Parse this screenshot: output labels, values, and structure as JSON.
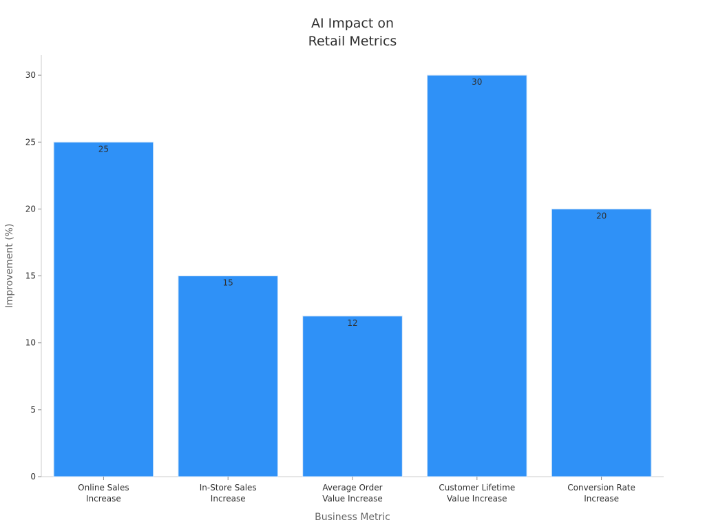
{
  "chart_data": {
    "type": "bar",
    "title": [
      "AI Impact on",
      "Retail Metrics"
    ],
    "xlabel": "Business Metric",
    "ylabel": "Improvement (%)",
    "categories": [
      [
        "Online Sales",
        "Increase"
      ],
      [
        "In-Store Sales",
        "Increase"
      ],
      [
        "Average Order",
        "Value Increase"
      ],
      [
        "Customer Lifetime",
        "Value Increase"
      ],
      [
        "Conversion Rate",
        "Increase"
      ]
    ],
    "values": [
      25,
      15,
      12,
      30,
      20
    ],
    "data_labels": [
      "25",
      "15",
      "12",
      "30",
      "20"
    ],
    "ylim": [
      0,
      31.5
    ],
    "yticks": [
      0,
      5,
      10,
      15,
      20,
      25,
      30
    ],
    "grid": false,
    "legend": "none",
    "colors": {
      "bar": "#2f91f7",
      "bar_edge": "#d8e8f8",
      "axis": "#cccccc",
      "tick": "#8c8c8c"
    }
  }
}
